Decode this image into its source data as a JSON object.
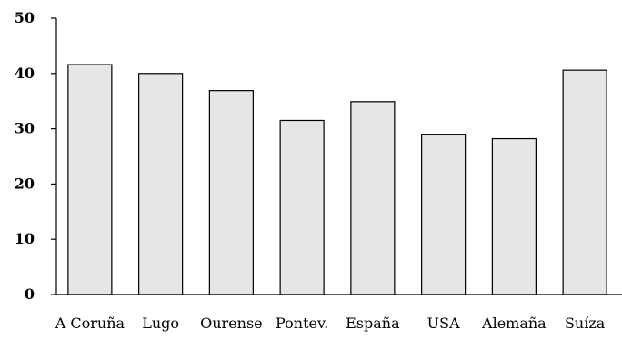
{
  "chart_data": {
    "type": "bar",
    "categories": [
      "A Coruña",
      "Lugo",
      "Ourense",
      "Pontev.",
      "España",
      "USA",
      "Alemaña",
      "Suíza"
    ],
    "values": [
      41.6,
      40.0,
      36.9,
      31.5,
      34.9,
      29.0,
      28.2,
      40.6
    ],
    "yticks": [
      "0",
      "10",
      "20",
      "30",
      "40",
      "50"
    ],
    "ylim": [
      0,
      50
    ],
    "title": "",
    "xlabel": "",
    "ylabel": "",
    "grid": false,
    "bar_color": "#e6e6e6",
    "bar_edge_color": "#000000"
  }
}
